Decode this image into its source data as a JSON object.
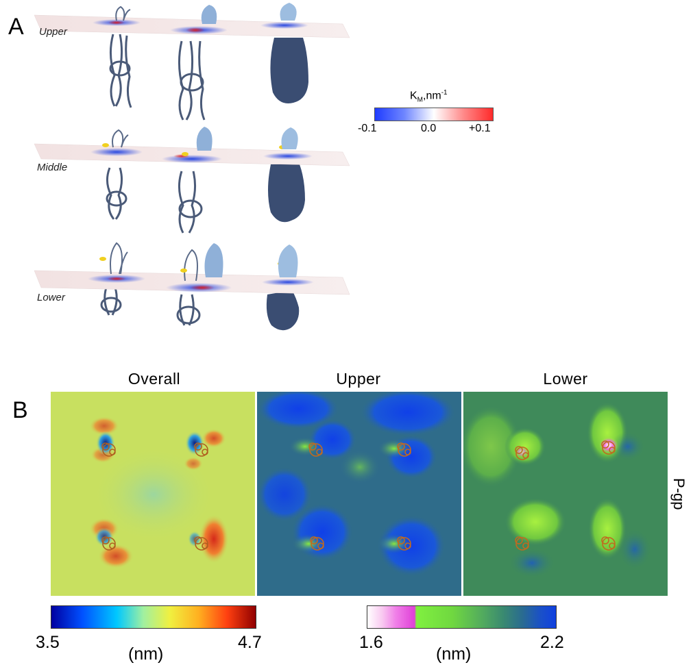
{
  "panel_a": {
    "letter": "A",
    "slabs": [
      "Upper",
      "Middle",
      "Lower"
    ],
    "colorbar": {
      "title_main": "K",
      "title_sub": "M",
      "title_tail": ",nm",
      "title_sup": "-1",
      "ticks": [
        "-0.1",
        "0.0",
        "+0.1"
      ],
      "colors": [
        "#1f3cff",
        "#ffffff",
        "#ff2a2a"
      ]
    }
  },
  "panel_b": {
    "letter": "B",
    "columns": [
      "Overall",
      "Upper",
      "Lower"
    ],
    "row_label": "P-gp",
    "colorbar_left": {
      "min": "3.5",
      "max": "4.7",
      "unit": "(nm)"
    },
    "colorbar_right": {
      "min": "1.6",
      "max": "2.2",
      "unit": "(nm)"
    }
  }
}
